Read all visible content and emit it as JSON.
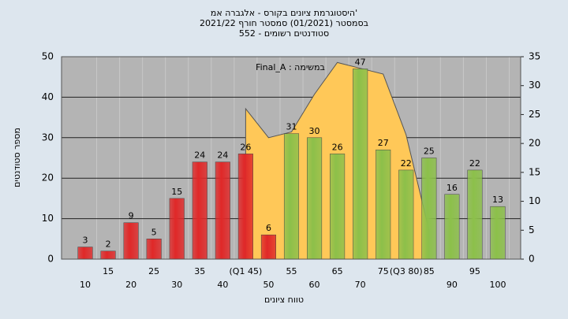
{
  "chart_data": {
    "type": "bar",
    "title": [
      "היסטוגרמת ציונים בקורס - אלגברה אמ'",
      "בסמסטר (01/2021) סמסטר חורף 2021/22",
      "552 - סטודנטים רשומים"
    ],
    "annotation": "Final_A : במשימה",
    "y_label": "מספר סטודנטים",
    "x_label": "טווח ציונים",
    "categories": [
      "10",
      "15",
      "20",
      "25",
      "30",
      "35",
      "40",
      "(Q1 45)",
      "50",
      "55",
      "60",
      "65",
      "70",
      "75",
      "(Q3 80)",
      "85",
      "90",
      "95",
      "100"
    ],
    "series": [
      {
        "values": [
          3,
          2,
          9,
          5,
          15,
          24,
          24,
          26,
          6,
          31,
          30,
          26,
          47,
          27,
          22,
          25,
          16,
          22,
          13
        ],
        "colors": [
          "#e02828",
          "#e02828",
          "#e02828",
          "#e02828",
          "#e02828",
          "#e02828",
          "#e02828",
          "#e02828",
          "#e02828",
          "#8cc04a",
          "#8cc04a",
          "#8cc04a",
          "#8cc04a",
          "#8cc04a",
          "#8cc04a",
          "#8cc04a",
          "#8cc04a",
          "#8cc04a",
          "#8cc04a"
        ]
      },
      {
        "type": "area",
        "axis": "y2",
        "color": "#ffc858",
        "values": [
          null,
          null,
          null,
          null,
          null,
          null,
          null,
          26,
          21,
          22,
          28.5,
          34,
          33,
          32,
          21.5,
          5,
          null,
          null,
          null
        ]
      }
    ],
    "ylim": [
      0,
      50
    ],
    "yticks": [
      0,
      10,
      20,
      30,
      40,
      50
    ],
    "y2lim": [
      0,
      35
    ],
    "y2ticks": [
      0,
      5,
      10,
      15,
      20,
      25,
      30,
      35
    ],
    "grid": true
  }
}
